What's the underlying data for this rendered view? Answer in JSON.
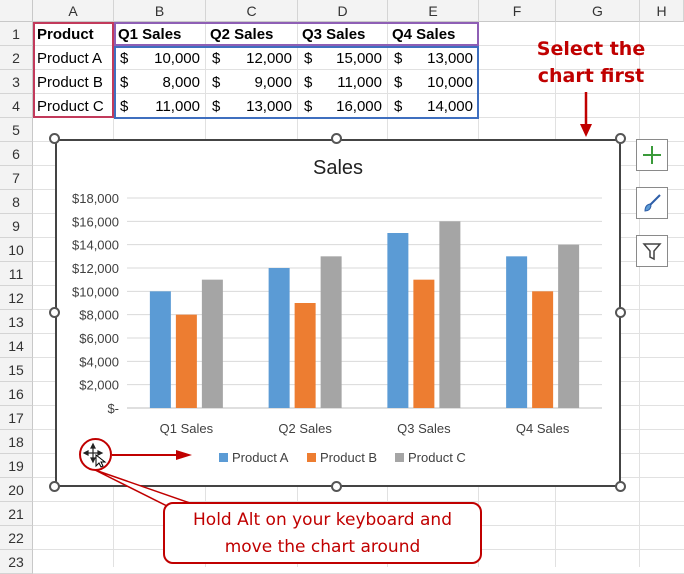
{
  "sheet": {
    "columns": [
      "A",
      "B",
      "C",
      "D",
      "E",
      "F",
      "G",
      "H"
    ],
    "rows": [
      "1",
      "2",
      "3",
      "4",
      "5",
      "6",
      "7",
      "8",
      "9",
      "10",
      "11",
      "12",
      "13",
      "14",
      "15",
      "16",
      "17",
      "18",
      "19",
      "20",
      "21",
      "22",
      "23"
    ],
    "headers": [
      "Product",
      "Q1 Sales",
      "Q2 Sales",
      "Q3 Sales",
      "Q4 Sales"
    ],
    "table": [
      {
        "product": "Product A",
        "values": [
          "10,000",
          "12,000",
          "15,000",
          "13,000"
        ]
      },
      {
        "product": "Product B",
        "values": [
          "8,000",
          "9,000",
          "11,000",
          "10,000"
        ]
      },
      {
        "product": "Product C",
        "values": [
          "11,000",
          "13,000",
          "16,000",
          "14,000"
        ]
      }
    ],
    "currency_symbol": "$"
  },
  "chart_data": {
    "type": "bar",
    "title": "Sales",
    "categories": [
      "Q1 Sales",
      "Q2 Sales",
      "Q3 Sales",
      "Q4 Sales"
    ],
    "series": [
      {
        "name": "Product A",
        "values": [
          10000,
          12000,
          15000,
          13000
        ],
        "color": "#5b9bd5"
      },
      {
        "name": "Product B",
        "values": [
          8000,
          9000,
          11000,
          10000
        ],
        "color": "#ed7d31"
      },
      {
        "name": "Product C",
        "values": [
          11000,
          13000,
          16000,
          14000
        ],
        "color": "#a5a5a5"
      }
    ],
    "ylim": [
      0,
      18000
    ],
    "yticks": [
      0,
      2000,
      4000,
      6000,
      8000,
      10000,
      12000,
      14000,
      16000,
      18000
    ],
    "ytick_labels": [
      "$-",
      "$2,000",
      "$4,000",
      "$6,000",
      "$8,000",
      "$10,000",
      "$12,000",
      "$14,000",
      "$16,000",
      "$18,000"
    ],
    "grid": true,
    "legend": "bottom"
  },
  "side_buttons": [
    {
      "name": "chart-elements-button",
      "icon": "plus-icon"
    },
    {
      "name": "chart-styles-button",
      "icon": "brush-icon"
    },
    {
      "name": "chart-filters-button",
      "icon": "filter-icon"
    }
  ],
  "annotations": {
    "select_note_line1": "Select the",
    "select_note_line2": "chart first",
    "alt_note_line1": "Hold Alt on your keyboard and",
    "alt_note_line2": "move the chart around",
    "accent_color": "#c00000"
  }
}
